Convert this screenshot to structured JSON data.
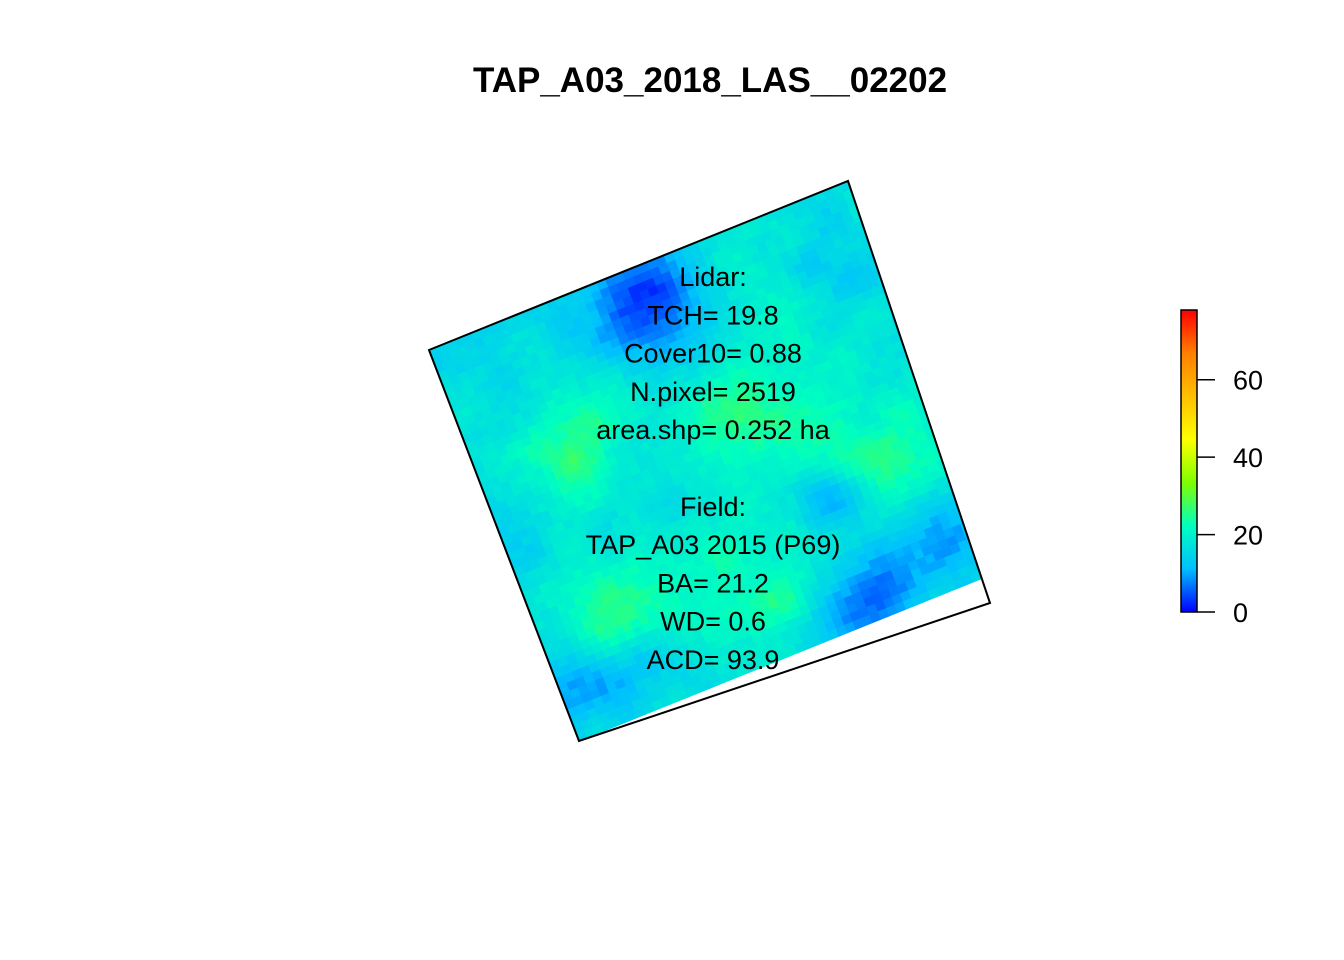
{
  "chart_data": {
    "type": "heatmap",
    "title": "TAP_A03_2018_LAS__02202",
    "colorbar": {
      "ticks": [
        "0",
        "20",
        "40",
        "60"
      ],
      "tick_values": [
        0,
        20,
        40,
        60
      ],
      "range": [
        0,
        78
      ],
      "colors": [
        "#0000ff",
        "#00bfff",
        "#00ffbf",
        "#7fff00",
        "#ffff00",
        "#ffbf00",
        "#ff7f00",
        "#ff0000"
      ]
    },
    "annotation": {
      "lines": [
        "Lidar:",
        "TCH= 19.8",
        "Cover10= 0.88",
        "N.pixel= 2519",
        "area.shp= 0.252 ha",
        "",
        "Field:",
        "TAP_A03 2015 (P69)",
        "BA= 21.2",
        "WD= 0.6",
        "ACD= 93.9"
      ]
    },
    "raster": {
      "rotation_deg": -22,
      "grid_size": 50,
      "value_range": [
        0,
        30
      ],
      "mean_value": 19.8
    }
  }
}
